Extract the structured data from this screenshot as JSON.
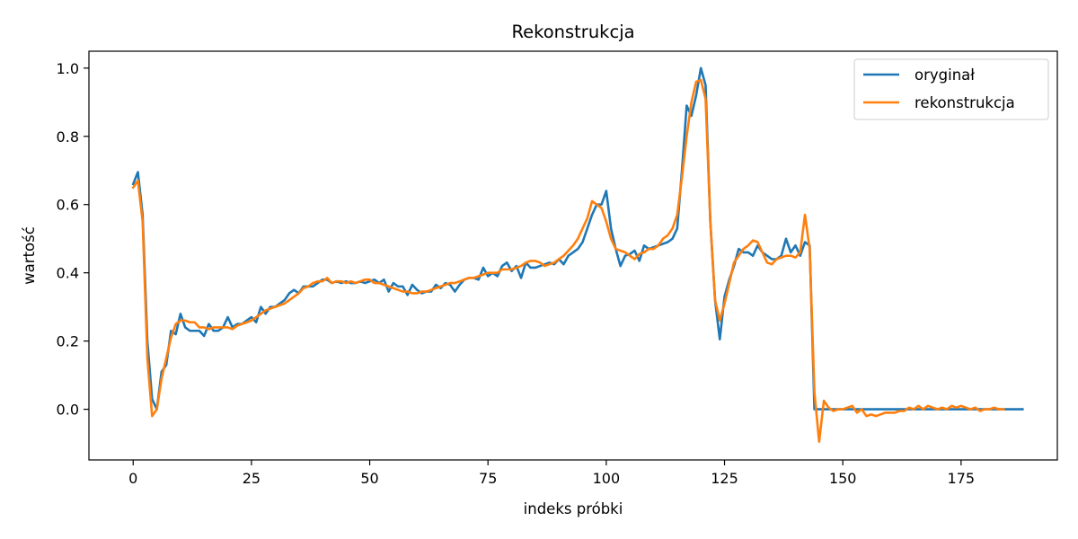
{
  "chart_data": {
    "type": "line",
    "title": "Rekonstrukcja",
    "xlabel": "indeks próbki",
    "ylabel": "wartość",
    "xlim": [
      -9.35,
      195.35
    ],
    "ylim": [
      -0.1485,
      1.0495
    ],
    "xticks": [
      0,
      25,
      50,
      75,
      100,
      125,
      150,
      175
    ],
    "yticks": [
      0.0,
      0.2,
      0.4,
      0.6,
      0.8,
      1.0
    ],
    "ytick_labels": [
      "0.0",
      "0.2",
      "0.4",
      "0.6",
      "0.8",
      "1.0"
    ],
    "grid": false,
    "legend": "top-right",
    "series": [
      {
        "name": "oryginał",
        "color": "#1f77b4",
        "values": [
          0.66,
          0.695,
          0.57,
          0.2,
          0.03,
          0.0,
          0.11,
          0.13,
          0.23,
          0.22,
          0.28,
          0.24,
          0.23,
          0.23,
          0.23,
          0.215,
          0.25,
          0.23,
          0.23,
          0.24,
          0.27,
          0.24,
          0.25,
          0.25,
          0.26,
          0.27,
          0.255,
          0.3,
          0.28,
          0.3,
          0.3,
          0.31,
          0.32,
          0.34,
          0.35,
          0.34,
          0.36,
          0.36,
          0.36,
          0.37,
          0.38,
          0.38,
          0.37,
          0.375,
          0.37,
          0.375,
          0.37,
          0.37,
          0.375,
          0.37,
          0.375,
          0.38,
          0.37,
          0.38,
          0.345,
          0.37,
          0.36,
          0.36,
          0.335,
          0.365,
          0.35,
          0.34,
          0.345,
          0.345,
          0.365,
          0.355,
          0.37,
          0.365,
          0.345,
          0.365,
          0.38,
          0.385,
          0.385,
          0.38,
          0.415,
          0.39,
          0.4,
          0.39,
          0.42,
          0.43,
          0.405,
          0.42,
          0.385,
          0.43,
          0.415,
          0.415,
          0.42,
          0.425,
          0.43,
          0.425,
          0.44,
          0.425,
          0.45,
          0.46,
          0.47,
          0.49,
          0.53,
          0.57,
          0.6,
          0.6,
          0.64,
          0.53,
          0.47,
          0.42,
          0.45,
          0.455,
          0.465,
          0.435,
          0.48,
          0.47,
          0.475,
          0.48,
          0.485,
          0.49,
          0.5,
          0.53,
          0.7,
          0.89,
          0.86,
          0.92,
          1.0,
          0.95,
          0.55,
          0.32,
          0.205,
          0.33,
          0.38,
          0.42,
          0.47,
          0.46,
          0.46,
          0.45,
          0.48,
          0.46,
          0.45,
          0.44,
          0.44,
          0.45,
          0.5,
          0.46,
          0.48,
          0.45,
          0.49,
          0.48,
          0.0,
          0.0,
          0.0,
          0.0,
          0.0,
          0.0,
          0.0,
          0.0,
          0.0,
          0.0,
          0.0,
          0.0,
          0.0,
          0.0,
          0.0,
          0.0,
          0.0,
          0.0,
          0.0,
          0.0,
          0.0,
          0.0,
          0.0,
          0.0,
          0.0,
          0.0,
          0.0,
          0.0,
          0.0,
          0.0,
          0.0,
          0.0,
          0.0,
          0.0,
          0.0,
          0.0,
          0.0,
          0.0,
          0.0,
          0.0,
          0.0,
          0.0,
          0.0,
          0.0,
          0.0
        ]
      },
      {
        "name": "rekonstrukcja",
        "color": "#ff7f0e",
        "values": [
          0.65,
          0.67,
          0.55,
          0.15,
          -0.02,
          0.0,
          0.09,
          0.15,
          0.21,
          0.25,
          0.26,
          0.26,
          0.255,
          0.255,
          0.24,
          0.24,
          0.235,
          0.24,
          0.24,
          0.24,
          0.24,
          0.235,
          0.245,
          0.25,
          0.255,
          0.26,
          0.27,
          0.28,
          0.29,
          0.295,
          0.3,
          0.305,
          0.31,
          0.32,
          0.33,
          0.34,
          0.355,
          0.36,
          0.37,
          0.375,
          0.375,
          0.385,
          0.37,
          0.375,
          0.375,
          0.37,
          0.375,
          0.37,
          0.375,
          0.38,
          0.38,
          0.37,
          0.37,
          0.365,
          0.36,
          0.355,
          0.35,
          0.345,
          0.345,
          0.34,
          0.34,
          0.345,
          0.345,
          0.35,
          0.355,
          0.36,
          0.365,
          0.37,
          0.37,
          0.375,
          0.38,
          0.385,
          0.385,
          0.39,
          0.395,
          0.4,
          0.4,
          0.4,
          0.41,
          0.41,
          0.41,
          0.415,
          0.42,
          0.43,
          0.435,
          0.435,
          0.43,
          0.42,
          0.425,
          0.43,
          0.44,
          0.45,
          0.465,
          0.48,
          0.5,
          0.53,
          0.56,
          0.61,
          0.6,
          0.59,
          0.55,
          0.5,
          0.47,
          0.465,
          0.46,
          0.45,
          0.44,
          0.455,
          0.46,
          0.47,
          0.47,
          0.48,
          0.5,
          0.51,
          0.53,
          0.57,
          0.68,
          0.8,
          0.9,
          0.96,
          0.965,
          0.91,
          0.55,
          0.32,
          0.26,
          0.31,
          0.37,
          0.43,
          0.45,
          0.47,
          0.48,
          0.495,
          0.49,
          0.46,
          0.43,
          0.425,
          0.44,
          0.445,
          0.45,
          0.45,
          0.445,
          0.46,
          0.57,
          0.47,
          0.05,
          -0.095,
          0.025,
          0.005,
          -0.005,
          0.0,
          0.0,
          0.005,
          0.01,
          -0.01,
          0.0,
          -0.02,
          -0.015,
          -0.02,
          -0.015,
          -0.01,
          -0.01,
          -0.01,
          -0.005,
          -0.005,
          0.005,
          0.0,
          0.01,
          0.0,
          0.01,
          0.005,
          0.0,
          0.005,
          0.0,
          0.01,
          0.005,
          0.01,
          0.005,
          0.0,
          0.005,
          -0.005,
          0.0,
          0.0,
          0.005,
          0.0,
          0.0
        ]
      }
    ]
  }
}
